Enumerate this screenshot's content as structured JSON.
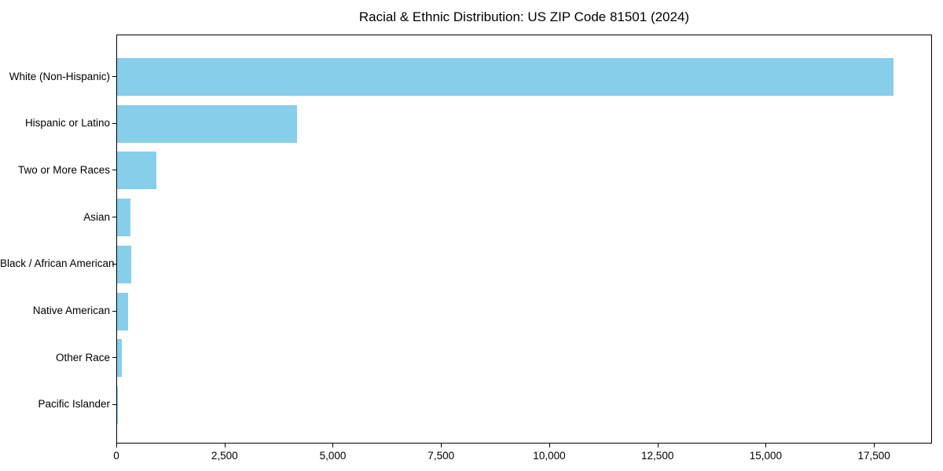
{
  "chart_data": {
    "type": "bar",
    "orientation": "horizontal",
    "title": "Racial & Ethnic Distribution: US ZIP Code 81501 (2024)",
    "categories": [
      "White (Non-Hispanic)",
      "Hispanic or Latino",
      "Two or More Races",
      "Asian",
      "Black / African American",
      "Native American",
      "Other Race",
      "Pacific Islander"
    ],
    "values": [
      17940,
      4160,
      910,
      310,
      320,
      255,
      110,
      15
    ],
    "xlabel": "",
    "ylabel": "",
    "xlim": [
      0,
      18840
    ],
    "x_ticks": [
      {
        "value": 0,
        "label": "0"
      },
      {
        "value": 2500,
        "label": "2,500"
      },
      {
        "value": 5000,
        "label": "5,000"
      },
      {
        "value": 7500,
        "label": "7,500"
      },
      {
        "value": 10000,
        "label": "10,000"
      },
      {
        "value": 12500,
        "label": "12,500"
      },
      {
        "value": 15000,
        "label": "15,000"
      },
      {
        "value": 17500,
        "label": "17,500"
      }
    ],
    "bar_color": "#87CEEB",
    "grid": false,
    "legend": null,
    "background_color": "#ffffff",
    "frame_color": "#000000"
  }
}
